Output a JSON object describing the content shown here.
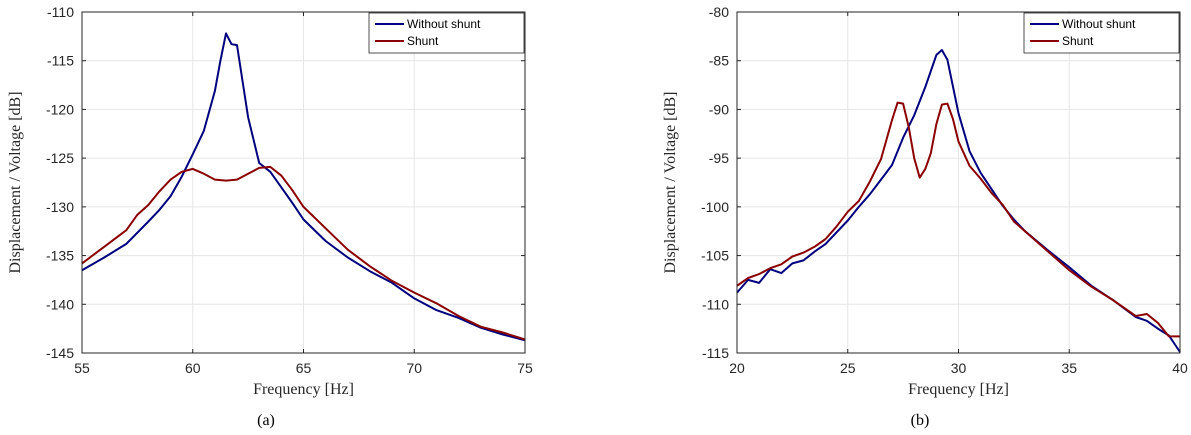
{
  "chart_data": [
    {
      "type": "line",
      "caption": "(a)",
      "xlabel": "Frequency [Hz]",
      "ylabel": "Displacement / Voltage [dB]",
      "xlim": [
        55,
        75
      ],
      "ylim": [
        -145,
        -110
      ],
      "xticks": [
        "55",
        "60",
        "65",
        "70",
        "75"
      ],
      "yticks": [
        "-110",
        "-115",
        "-120",
        "-125",
        "-130",
        "-135",
        "-140",
        "-145"
      ],
      "grid": true,
      "legend_position": "top-right",
      "series": [
        {
          "name": "Without shunt",
          "color": "#00007f",
          "x": [
            55,
            56,
            57,
            58,
            58.5,
            59,
            59.5,
            60,
            60.5,
            61,
            61.25,
            61.5,
            61.75,
            62,
            62.5,
            63,
            63.5,
            64,
            64.5,
            65,
            66,
            67,
            68,
            69,
            70,
            71,
            72,
            73,
            74,
            75
          ],
          "y": [
            -136.5,
            -135.2,
            -133.8,
            -131.5,
            -130.3,
            -128.9,
            -126.9,
            -124.6,
            -122.2,
            -118.1,
            -115.0,
            -112.2,
            -113.3,
            -113.4,
            -120.8,
            -125.5,
            -126.4,
            -128.0,
            -129.6,
            -131.3,
            -133.5,
            -135.2,
            -136.6,
            -137.8,
            -139.4,
            -140.6,
            -141.4,
            -142.4,
            -143.1,
            -143.7
          ]
        },
        {
          "name": "Shunt",
          "color": "#8b0000",
          "x": [
            55,
            56,
            57,
            57.5,
            58,
            58.5,
            59,
            59.5,
            60,
            60.5,
            61,
            61.5,
            62,
            62.5,
            63,
            63.5,
            64,
            64.5,
            65,
            66,
            67,
            68,
            69,
            70,
            71,
            72,
            73,
            74,
            75
          ],
          "y": [
            -135.8,
            -134.1,
            -132.4,
            -130.8,
            -129.8,
            -128.4,
            -127.2,
            -126.4,
            -126.1,
            -126.6,
            -127.2,
            -127.3,
            -127.2,
            -126.6,
            -126.0,
            -125.9,
            -126.8,
            -128.3,
            -130.0,
            -132.2,
            -134.4,
            -136.1,
            -137.6,
            -138.8,
            -139.9,
            -141.2,
            -142.3,
            -142.9,
            -143.6
          ]
        }
      ]
    },
    {
      "type": "line",
      "caption": "(b)",
      "xlabel": "Frequency [Hz]",
      "ylabel": "Displacement / Voltage [dB]",
      "xlim": [
        20,
        40
      ],
      "ylim": [
        -115,
        -80
      ],
      "xticks": [
        "20",
        "25",
        "30",
        "35",
        "40"
      ],
      "yticks": [
        "-80",
        "-85",
        "-90",
        "-95",
        "-100",
        "-105",
        "-110",
        "-115"
      ],
      "grid": true,
      "legend_position": "top-right",
      "series": [
        {
          "name": "Without shunt",
          "color": "#00007f",
          "x": [
            20,
            20.5,
            21,
            21.5,
            22,
            22.5,
            23,
            23.5,
            24,
            24.5,
            25,
            25.5,
            26,
            26.5,
            27,
            27.5,
            28,
            28.5,
            29,
            29.25,
            29.5,
            30,
            30.5,
            31,
            31.5,
            32,
            32.5,
            33,
            34,
            35,
            36,
            37,
            38,
            38.5,
            39,
            39.5,
            40
          ],
          "y": [
            -108.8,
            -107.5,
            -107.8,
            -106.4,
            -106.8,
            -105.8,
            -105.5,
            -104.6,
            -103.8,
            -102.6,
            -101.4,
            -100.0,
            -98.7,
            -97.2,
            -95.7,
            -92.9,
            -90.6,
            -87.7,
            -84.4,
            -83.9,
            -84.9,
            -90.4,
            -94.3,
            -96.5,
            -98.2,
            -99.9,
            -101.3,
            -102.5,
            -104.4,
            -106.2,
            -108.1,
            -109.6,
            -111.3,
            -111.7,
            -112.5,
            -113.2,
            -114.9
          ]
        },
        {
          "name": "Shunt",
          "color": "#8b0000",
          "x": [
            20,
            20.5,
            21,
            21.5,
            22,
            22.5,
            23,
            23.5,
            24,
            24.5,
            25,
            25.5,
            26,
            26.5,
            27,
            27.25,
            27.5,
            27.75,
            28,
            28.25,
            28.5,
            28.75,
            29,
            29.25,
            29.5,
            29.75,
            30,
            30.5,
            31,
            31.5,
            32,
            32.5,
            33,
            34,
            35,
            36,
            37,
            38,
            38.5,
            39,
            39.5,
            40
          ],
          "y": [
            -108.1,
            -107.3,
            -106.9,
            -106.3,
            -105.9,
            -105.1,
            -104.7,
            -104.1,
            -103.3,
            -102.0,
            -100.5,
            -99.4,
            -97.4,
            -95.1,
            -91.1,
            -89.3,
            -89.4,
            -91.8,
            -95.0,
            -97.0,
            -96.1,
            -94.5,
            -91.5,
            -89.5,
            -89.4,
            -91.0,
            -93.3,
            -95.8,
            -97.1,
            -98.6,
            -99.8,
            -101.5,
            -102.5,
            -104.5,
            -106.5,
            -108.2,
            -109.6,
            -111.2,
            -111.0,
            -111.9,
            -113.3,
            -113.3
          ]
        }
      ]
    }
  ]
}
